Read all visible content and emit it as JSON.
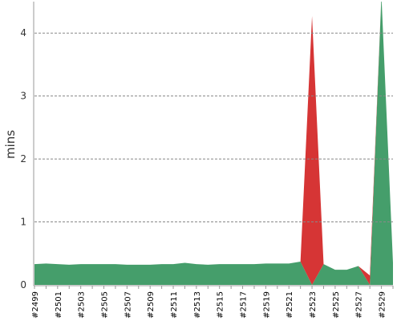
{
  "chart_data": {
    "type": "stacked-area",
    "y_label": "mins",
    "categories": [
      "#2499",
      null,
      "#2501",
      null,
      "#2503",
      null,
      "#2505",
      null,
      "#2507",
      null,
      "#2509",
      null,
      "#2511",
      null,
      "#2513",
      null,
      "#2515",
      null,
      "#2517",
      null,
      "#2519",
      null,
      "#2521",
      null,
      "#2523",
      null,
      "#2525",
      null,
      "#2527",
      null,
      "#2529",
      null
    ],
    "series": [
      {
        "color": "#459e6b",
        "values": [
          0.33,
          0.34,
          0.33,
          0.32,
          0.33,
          0.33,
          0.33,
          0.33,
          0.32,
          0.32,
          0.32,
          0.33,
          0.33,
          0.35,
          0.33,
          0.32,
          0.33,
          0.33,
          0.33,
          0.33,
          0.34,
          0.34,
          0.34,
          0.37,
          0,
          0.33,
          0.24,
          0.24,
          0.3,
          0,
          4.6,
          0.35
        ]
      },
      {
        "color": "#d63535",
        "values": [
          0,
          0,
          0,
          0,
          0,
          0,
          0,
          0,
          0,
          0,
          0,
          0,
          0,
          0,
          0,
          0,
          0,
          0,
          0,
          0,
          0,
          0,
          0,
          0,
          4.27,
          0,
          0,
          0,
          0,
          0.15,
          0,
          0
        ]
      }
    ],
    "ylim": [
      0,
      4.5
    ],
    "yticks": [
      0,
      1,
      2,
      3,
      4
    ],
    "grid": true
  }
}
